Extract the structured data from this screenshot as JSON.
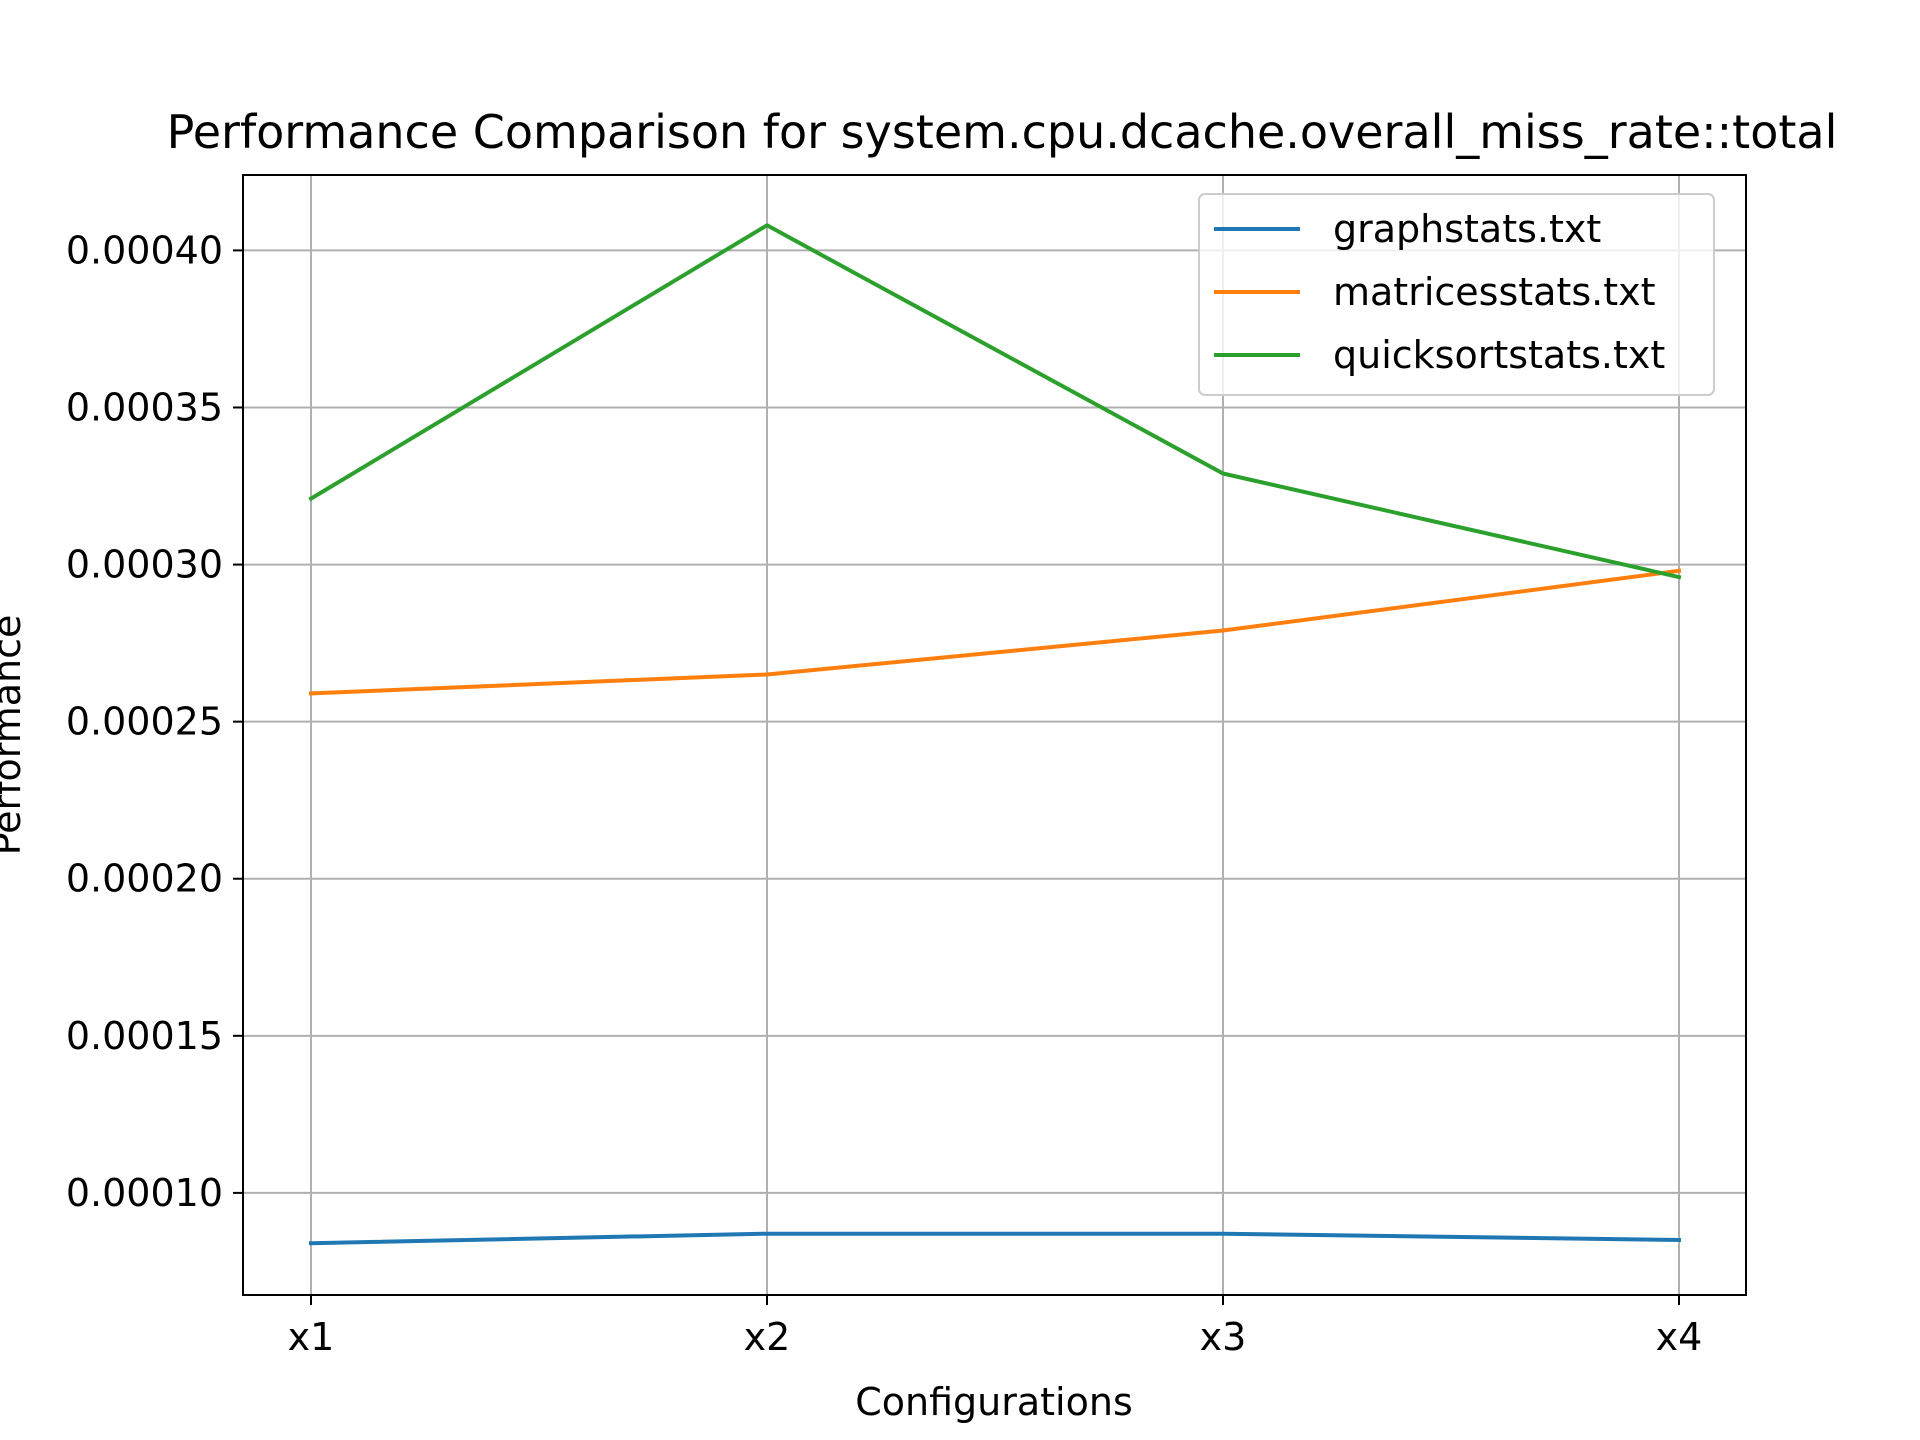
{
  "chart_data": {
    "type": "line",
    "title": "Performance Comparison for system.cpu.dcache.overall_miss_rate::total",
    "xlabel": "Configurations",
    "ylabel": "Performance",
    "categories": [
      "x1",
      "x2",
      "x3",
      "x4"
    ],
    "ylim": [
      6.75e-05,
      0.000424
    ],
    "yticks": [
      0.0001,
      0.00015,
      0.0002,
      0.00025,
      0.0003,
      0.00035,
      0.0004
    ],
    "ytick_labels": [
      "0.00010",
      "0.00015",
      "0.00020",
      "0.00025",
      "0.00030",
      "0.00035",
      "0.00040"
    ],
    "grid": true,
    "legend_position": "upper right",
    "series": [
      {
        "name": "graphstats.txt",
        "color": "#1f77b4",
        "values": [
          8.4e-05,
          8.7e-05,
          8.7e-05,
          8.5e-05
        ]
      },
      {
        "name": "matricesstats.txt",
        "color": "#ff7f0e",
        "values": [
          0.000259,
          0.000265,
          0.000279,
          0.000298
        ]
      },
      {
        "name": "quicksortstats.txt",
        "color": "#2ca02c",
        "values": [
          0.000321,
          0.000408,
          0.000329,
          0.000296
        ]
      }
    ]
  }
}
